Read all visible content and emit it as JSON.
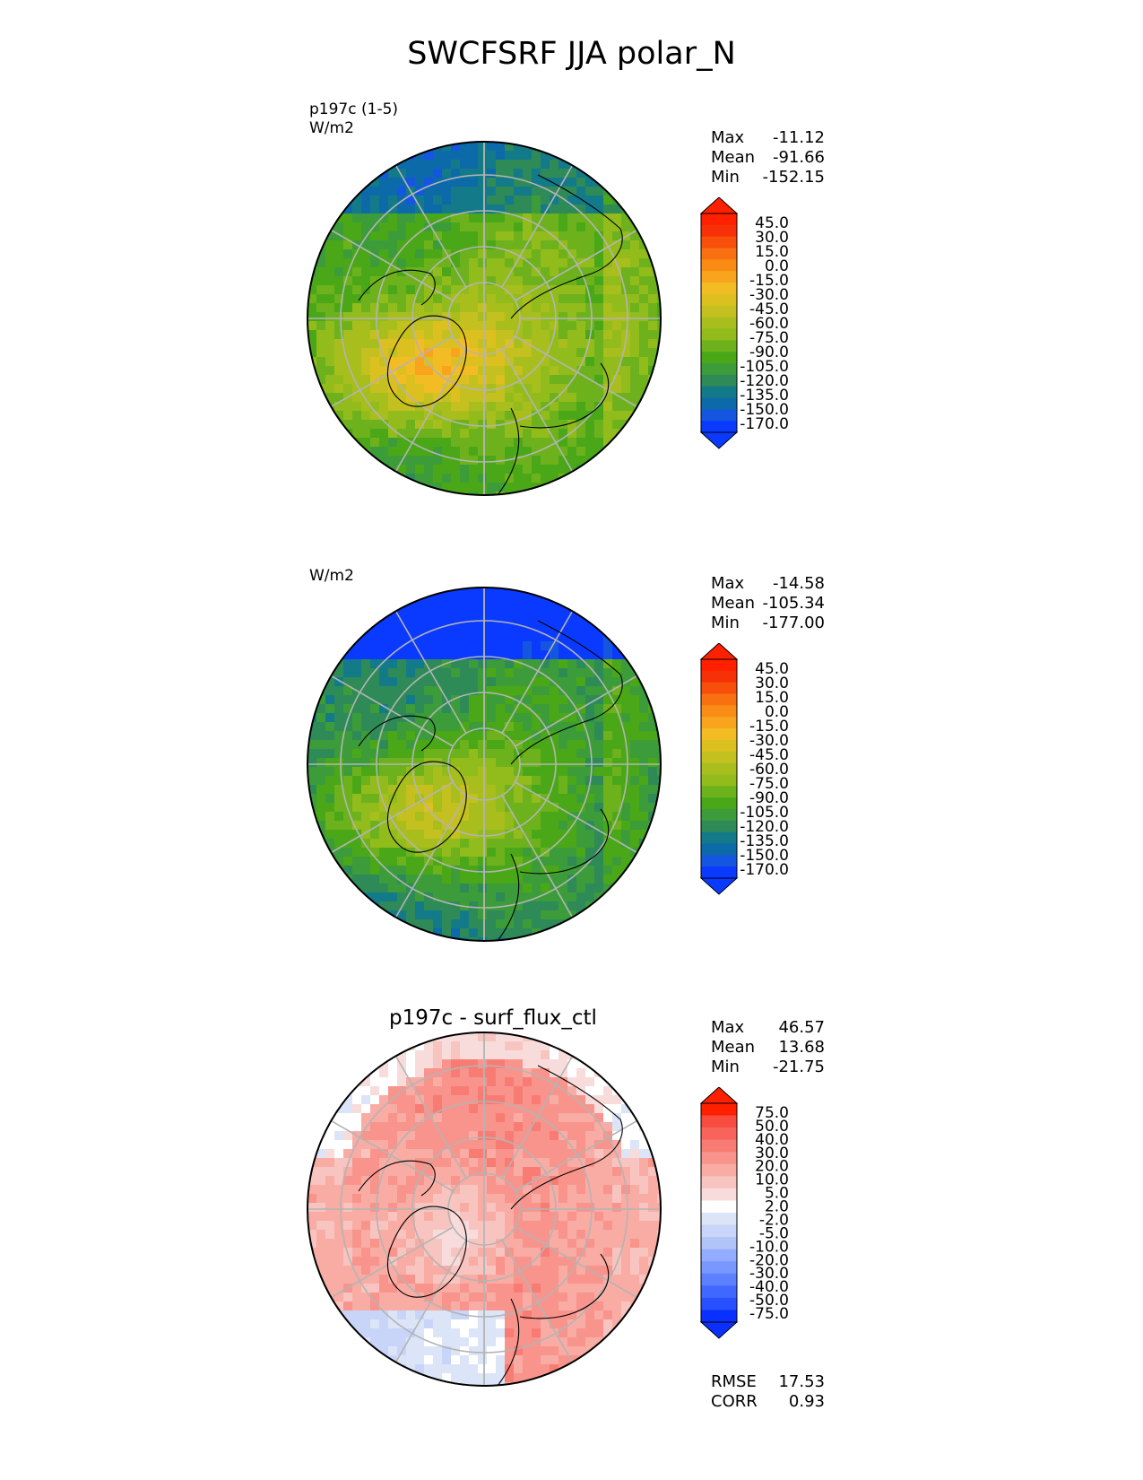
{
  "title": "SWCFSRF JJA polar_N",
  "colors": {
    "abs_scale": [
      "#0a3aff",
      "#1456e0",
      "#0d6aa8",
      "#137a8a",
      "#2e8a57",
      "#3d9c3a",
      "#4aa818",
      "#6db21c",
      "#92bc1c",
      "#a8be1c",
      "#c4c020",
      "#dcc020",
      "#f4bc24",
      "#f8a41c",
      "#f88c14",
      "#f87010",
      "#f8500c",
      "#f83008",
      "#ff2000"
    ],
    "diff_scale": [
      "#0a30ff",
      "#2850ff",
      "#4068ff",
      "#5c80ff",
      "#7898ff",
      "#94acff",
      "#b0c4f8",
      "#c8d4f8",
      "#dce4f8",
      "#ffffff",
      "#f8dcdc",
      "#f8c4c0",
      "#f8aca4",
      "#f8948c",
      "#f87c74",
      "#f8645c",
      "#f84c40",
      "#ff2000"
    ],
    "land_outline": "#000000",
    "grid": "#b4b4b4"
  },
  "panels": [
    {
      "id": "test",
      "subtitle_lines": [
        "p197c (1-5)",
        "W/m2"
      ],
      "center_title": "",
      "stats": [
        {
          "label": "Max",
          "value": "-11.12"
        },
        {
          "label": "Mean",
          "value": "-91.66"
        },
        {
          "label": "Min",
          "value": "-152.15"
        }
      ],
      "extra_stats": [],
      "colorbar_ticks": [
        "45.0",
        "30.0",
        "15.0",
        "0.0",
        "-15.0",
        "-30.0",
        "-45.0",
        "-60.0",
        "-75.0",
        "-90.0",
        "-105.0",
        "-120.0",
        "-135.0",
        "-150.0",
        "-170.0"
      ]
    },
    {
      "id": "reference",
      "subtitle_lines": [
        "W/m2"
      ],
      "center_title": "",
      "stats": [
        {
          "label": "Max",
          "value": "-14.58"
        },
        {
          "label": "Mean",
          "value": "-105.34"
        },
        {
          "label": "Min",
          "value": "-177.00"
        }
      ],
      "extra_stats": [],
      "colorbar_ticks": [
        "45.0",
        "30.0",
        "15.0",
        "0.0",
        "-15.0",
        "-30.0",
        "-45.0",
        "-60.0",
        "-75.0",
        "-90.0",
        "-105.0",
        "-120.0",
        "-135.0",
        "-150.0",
        "-170.0"
      ]
    },
    {
      "id": "difference",
      "subtitle_lines": [],
      "center_title": "p197c - surf_flux_ctl",
      "stats": [
        {
          "label": "Max",
          "value": "46.57"
        },
        {
          "label": "Mean",
          "value": "13.68"
        },
        {
          "label": "Min",
          "value": "-21.75"
        }
      ],
      "extra_stats": [
        {
          "label": "RMSE",
          "value": "17.53"
        },
        {
          "label": "CORR",
          "value": "0.93"
        }
      ],
      "colorbar_ticks": [
        "75.0",
        "50.0",
        "40.0",
        "30.0",
        "20.0",
        "10.0",
        "5.0",
        "2.0",
        "-2.0",
        "-5.0",
        "-10.0",
        "-20.0",
        "-30.0",
        "-40.0",
        "-50.0",
        "-75.0"
      ]
    }
  ],
  "chart_data": [
    {
      "type": "heatmap",
      "projection": "north polar stereographic",
      "title": "p197c (1-5)",
      "units": "W/m2",
      "color_levels": [
        -170,
        -150,
        -135,
        -120,
        -105,
        -90,
        -75,
        -60,
        -45,
        -30,
        -15,
        0,
        15,
        30,
        45
      ],
      "stats": {
        "max": -11.12,
        "mean": -91.66,
        "min": -152.15
      }
    },
    {
      "type": "heatmap",
      "projection": "north polar stereographic",
      "units": "W/m2",
      "color_levels": [
        -170,
        -150,
        -135,
        -120,
        -105,
        -90,
        -75,
        -60,
        -45,
        -30,
        -15,
        0,
        15,
        30,
        45
      ],
      "stats": {
        "max": -14.58,
        "mean": -105.34,
        "min": -177.0
      }
    },
    {
      "type": "heatmap",
      "projection": "north polar stereographic",
      "title": "p197c - surf_flux_ctl",
      "color_levels": [
        -75,
        -50,
        -40,
        -30,
        -20,
        -10,
        -5,
        -2,
        2,
        5,
        10,
        20,
        30,
        40,
        50,
        75
      ],
      "stats": {
        "max": 46.57,
        "mean": 13.68,
        "min": -21.75,
        "rmse": 17.53,
        "corr": 0.93
      }
    }
  ]
}
